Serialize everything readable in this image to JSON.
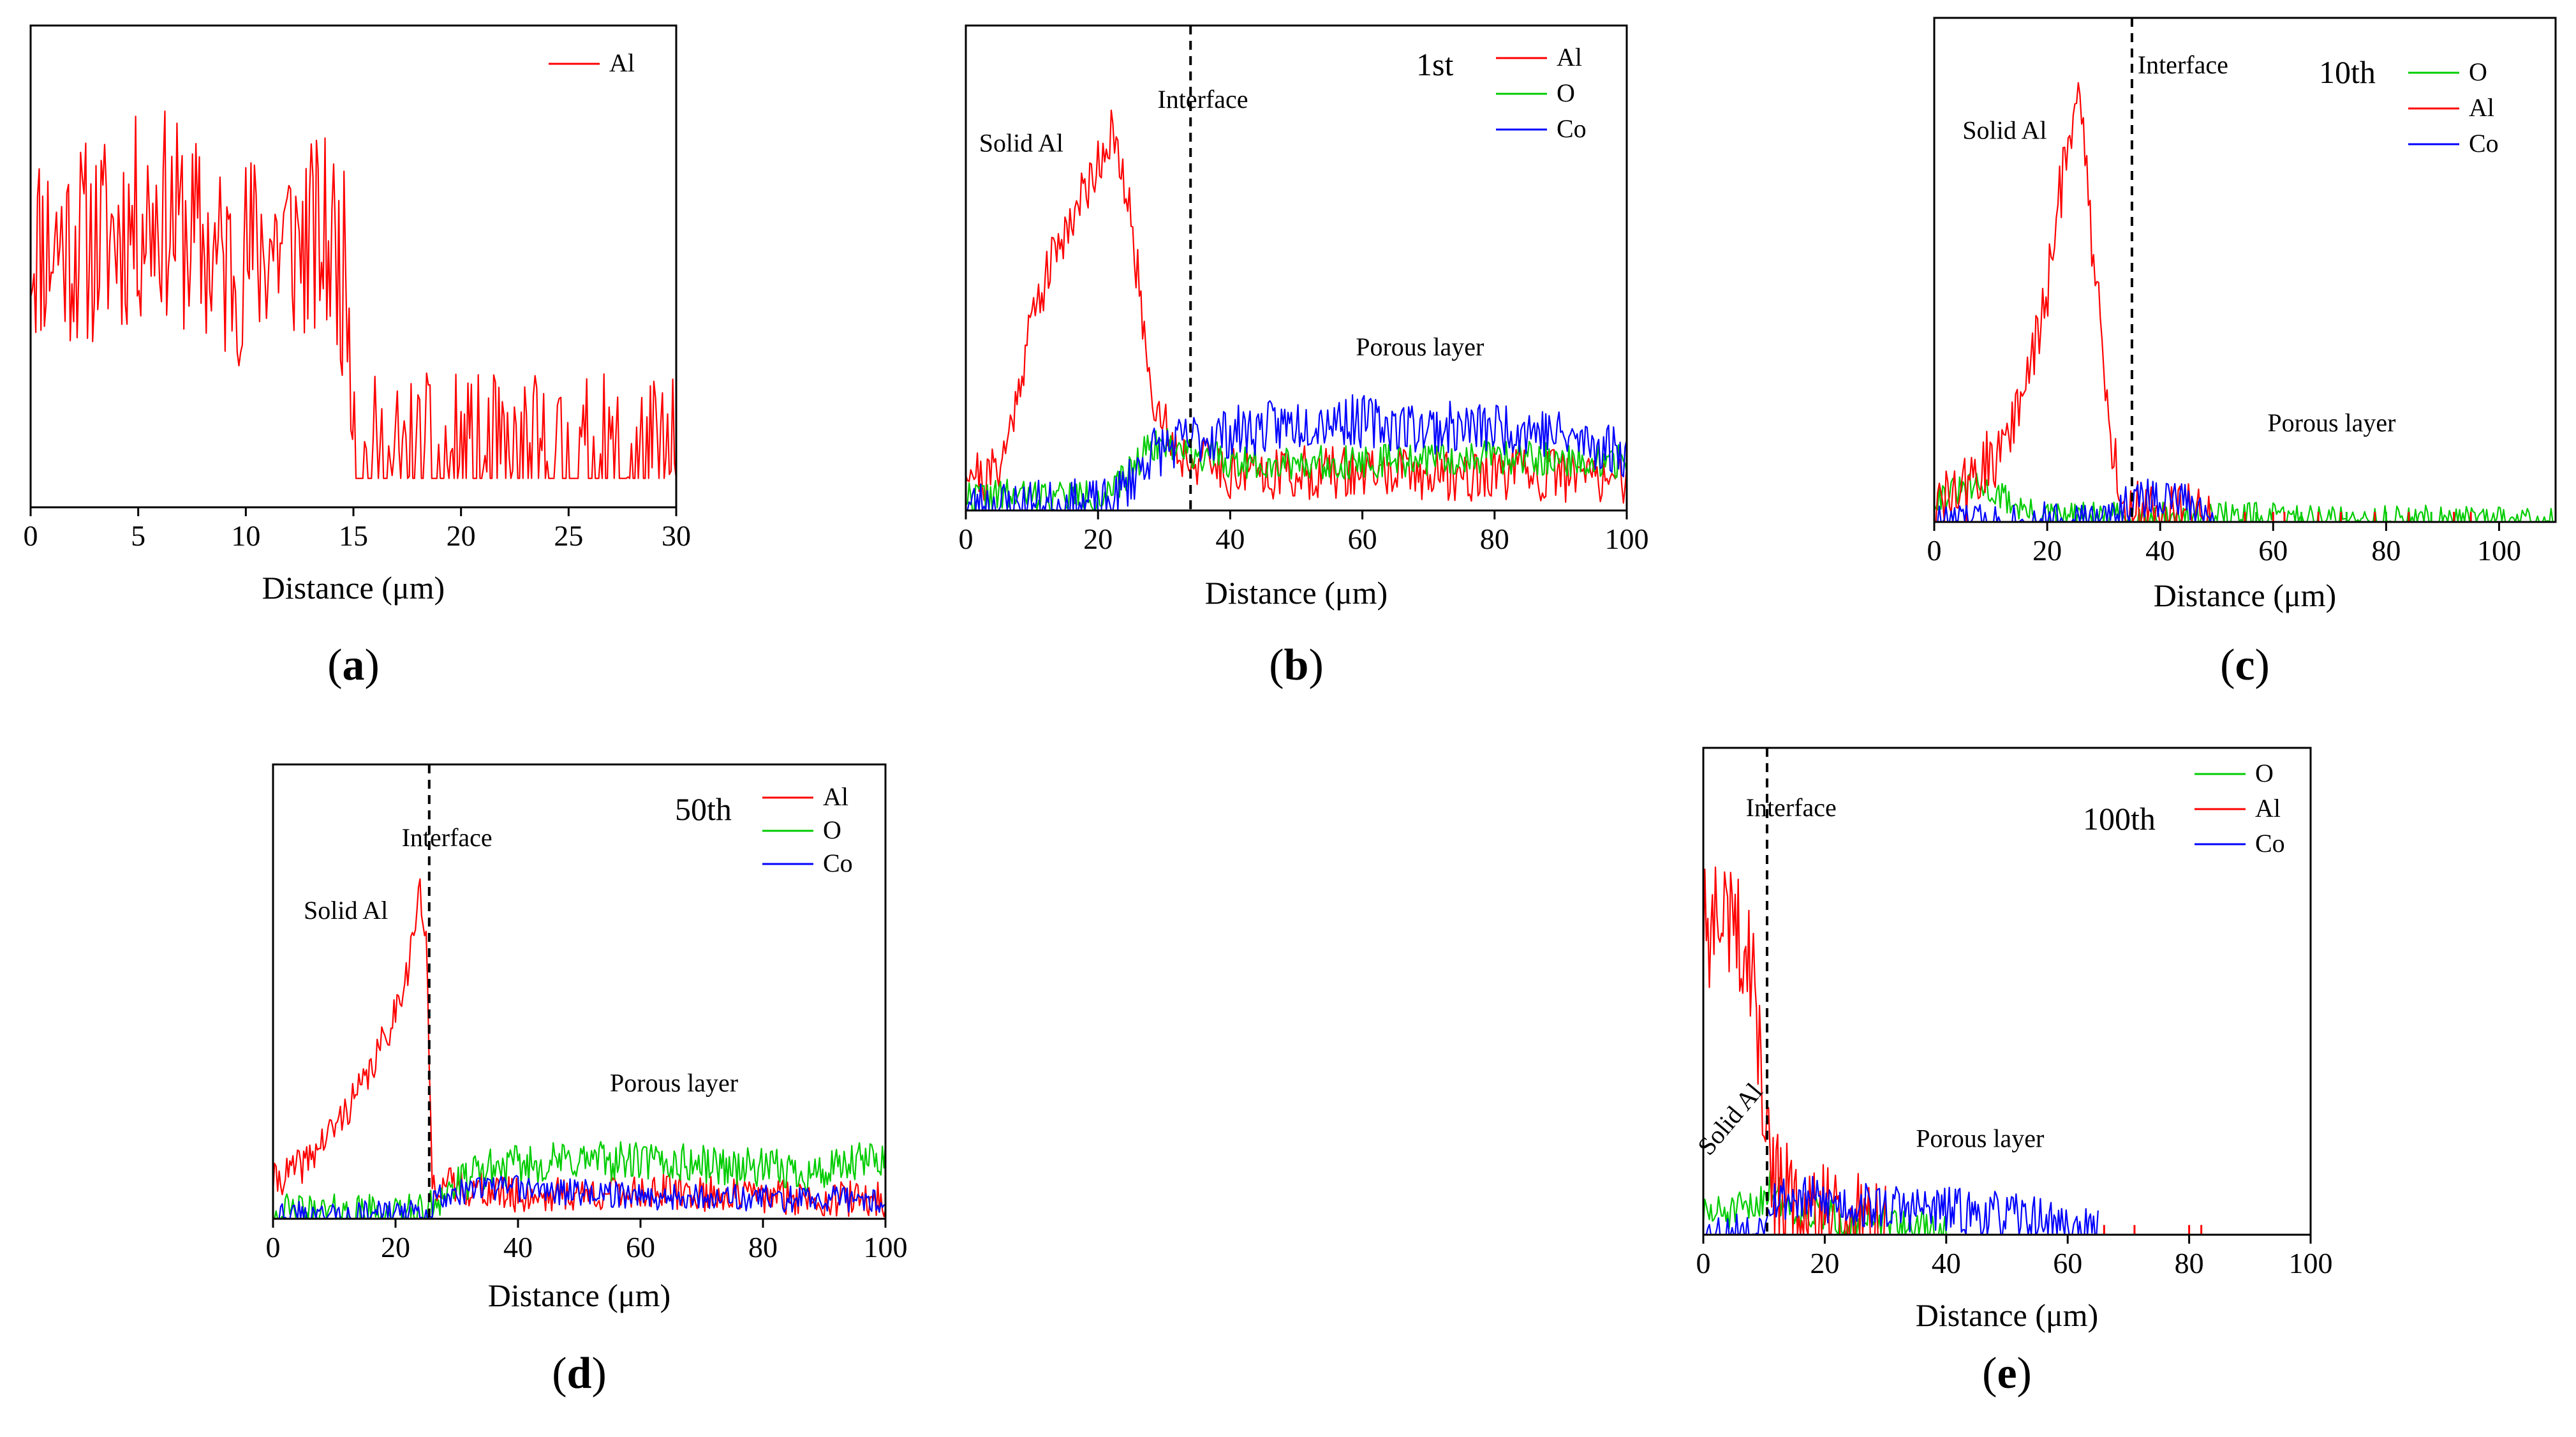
{
  "chart_data": [
    {
      "id": "a",
      "panel_label": "a",
      "type": "line",
      "title": "",
      "xlabel": "Distance (μm)",
      "ylabel": "",
      "xlim": [
        0,
        30
      ],
      "ylim": [
        0,
        1
      ],
      "xticks": [
        0,
        5,
        10,
        15,
        20,
        25,
        30
      ],
      "legend": [
        "Al"
      ],
      "colors": {
        "Al": "#ff0000"
      },
      "series": [
        {
          "name": "Al",
          "seed": 11,
          "step": 0.08,
          "noise": 0.22,
          "clip": true,
          "profile": [
            [
              0,
              0.55
            ],
            [
              3,
              0.55
            ],
            [
              6,
              0.62
            ],
            [
              9,
              0.5
            ],
            [
              10,
              0.52
            ],
            [
              11,
              0.55
            ],
            [
              14,
              0.55
            ],
            [
              14.8,
              0.45
            ],
            [
              15.2,
              0.06
            ],
            [
              30,
              0.06
            ]
          ]
        }
      ],
      "annotations": [],
      "interface": null
    },
    {
      "id": "b",
      "panel_label": "b",
      "type": "line",
      "title": "",
      "run_label": "1st",
      "xlabel": "Distance (μm)",
      "ylabel": "",
      "xlim": [
        0,
        100
      ],
      "ylim": [
        0,
        1
      ],
      "xticks": [
        0,
        20,
        40,
        60,
        80,
        100
      ],
      "legend": [
        "Al",
        "O",
        "Co"
      ],
      "colors": {
        "Al": "#ff0000",
        "O": "#00cc00",
        "Co": "#0000ff"
      },
      "series": [
        {
          "name": "Al",
          "seed": 21,
          "step": 0.25,
          "noise": 0.055,
          "profile": [
            [
              0,
              0.1
            ],
            [
              3,
              0.06
            ],
            [
              6,
              0.12
            ],
            [
              10,
              0.4
            ],
            [
              14,
              0.55
            ],
            [
              18,
              0.66
            ],
            [
              22,
              0.78
            ],
            [
              25,
              0.6
            ],
            [
              28,
              0.25
            ],
            [
              32,
              0.12
            ],
            [
              40,
              0.08
            ],
            [
              100,
              0.07
            ]
          ]
        },
        {
          "name": "O",
          "seed": 22,
          "step": 0.25,
          "noise": 0.035,
          "profile": [
            [
              0,
              0.03
            ],
            [
              22,
              0.03
            ],
            [
              28,
              0.14
            ],
            [
              32,
              0.13
            ],
            [
              40,
              0.1
            ],
            [
              60,
              0.1
            ],
            [
              80,
              0.11
            ],
            [
              100,
              0.1
            ]
          ]
        },
        {
          "name": "Co",
          "seed": 23,
          "step": 0.25,
          "noise": 0.055,
          "profile": [
            [
              0,
              0.01
            ],
            [
              22,
              0.01
            ],
            [
              28,
              0.12
            ],
            [
              35,
              0.15
            ],
            [
              45,
              0.17
            ],
            [
              55,
              0.19
            ],
            [
              70,
              0.17
            ],
            [
              85,
              0.17
            ],
            [
              100,
              0.12
            ]
          ]
        }
      ],
      "annotations": [
        {
          "text": "Solid Al",
          "x": 2,
          "y": 0.74
        },
        {
          "text": "Interface",
          "x": 29,
          "y": 0.83
        },
        {
          "text": "Porous layer",
          "x": 59,
          "y": 0.32
        }
      ],
      "interface": 34
    },
    {
      "id": "c",
      "panel_label": "c",
      "type": "line",
      "title": "",
      "run_label": "10th",
      "xlabel": "Distance (μm)",
      "ylabel": "",
      "xlim": [
        0,
        110
      ],
      "ylim": [
        0,
        1
      ],
      "xticks": [
        0,
        20,
        40,
        60,
        80,
        100
      ],
      "legend": [
        "O",
        "Al",
        "Co"
      ],
      "colors": {
        "O": "#00cc00",
        "Al": "#ff0000",
        "Co": "#0000ff"
      },
      "series": [
        {
          "name": "O",
          "seed": 31,
          "step": 0.3,
          "noise": 0.03,
          "floor": 0.0,
          "profile": [
            [
              0,
              0.05
            ],
            [
              8,
              0.07
            ],
            [
              12,
              0.05
            ],
            [
              18,
              0.01
            ],
            [
              50,
              0.01
            ],
            [
              110,
              0.0
            ]
          ]
        },
        {
          "name": "Al",
          "seed": 32,
          "step": 0.3,
          "noise": 0.07,
          "floor": 0.0,
          "limit": 50,
          "profile": [
            [
              0,
              0.02
            ],
            [
              5,
              0.06
            ],
            [
              10,
              0.12
            ],
            [
              15,
              0.22
            ],
            [
              20,
              0.45
            ],
            [
              24,
              0.8
            ],
            [
              26,
              0.85
            ],
            [
              28,
              0.55
            ],
            [
              31,
              0.18
            ],
            [
              34,
              0.02
            ],
            [
              50,
              0.0
            ]
          ]
        },
        {
          "name": "Co",
          "seed": 33,
          "step": 0.3,
          "noise": 0.04,
          "floor": 0.0,
          "limit": 50,
          "profile": [
            [
              0,
              0.0
            ],
            [
              30,
              0.0
            ],
            [
              33,
              0.03
            ],
            [
              38,
              0.05
            ],
            [
              45,
              0.04
            ],
            [
              49,
              0.0
            ]
          ]
        }
      ],
      "sparse": [
        {
          "name": "Al",
          "x": [
            55,
            60,
            62,
            68,
            72,
            78,
            84,
            92,
            95
          ],
          "y": 0.02
        },
        {
          "name": "O",
          "x": [
            57,
            65,
            73,
            80,
            88
          ],
          "y": 0.02
        }
      ],
      "annotations": [
        {
          "text": "Solid Al",
          "x": 5,
          "y": 0.76
        },
        {
          "text": "Interface",
          "x": 36,
          "y": 0.89
        },
        {
          "text": "Porous layer",
          "x": 59,
          "y": 0.18
        }
      ],
      "interface": 35
    },
    {
      "id": "d",
      "panel_label": "d",
      "type": "line",
      "title": "",
      "run_label": "50th",
      "xlabel": "Distance (μm)",
      "ylabel": "",
      "xlim": [
        0,
        100
      ],
      "ylim": [
        0,
        1
      ],
      "xticks": [
        0,
        20,
        40,
        60,
        80,
        100
      ],
      "legend": [
        "Al",
        "O",
        "Co"
      ],
      "colors": {
        "Al": "#ff0000",
        "O": "#00cc00",
        "Co": "#0000ff"
      },
      "series": [
        {
          "name": "Al",
          "seed": 41,
          "step": 0.25,
          "noise": 0.04,
          "limit": 100,
          "profile": [
            [
              0,
              0.08
            ],
            [
              5,
              0.12
            ],
            [
              10,
              0.2
            ],
            [
              15,
              0.3
            ],
            [
              19,
              0.42
            ],
            [
              22,
              0.55
            ],
            [
              24,
              0.72
            ],
            [
              25,
              0.6
            ],
            [
              26,
              0.08
            ],
            [
              40,
              0.05
            ],
            [
              60,
              0.06
            ],
            [
              80,
              0.05
            ],
            [
              100,
              0.04
            ]
          ]
        },
        {
          "name": "O",
          "seed": 42,
          "step": 0.25,
          "noise": 0.045,
          "profile": [
            [
              0,
              0.01
            ],
            [
              25,
              0.01
            ],
            [
              27,
              0.05
            ],
            [
              35,
              0.11
            ],
            [
              50,
              0.13
            ],
            [
              70,
              0.12
            ],
            [
              90,
              0.1
            ],
            [
              100,
              0.14
            ]
          ]
        },
        {
          "name": "Co",
          "seed": 43,
          "step": 0.25,
          "noise": 0.03,
          "profile": [
            [
              0,
              0.01
            ],
            [
              25,
              0.01
            ],
            [
              27,
              0.05
            ],
            [
              35,
              0.07
            ],
            [
              60,
              0.05
            ],
            [
              100,
              0.04
            ]
          ]
        }
      ],
      "annotations": [
        {
          "text": "Solid Al",
          "x": 5,
          "y": 0.66
        },
        {
          "text": "Interface",
          "x": 21,
          "y": 0.82
        },
        {
          "text": "Porous layer",
          "x": 55,
          "y": 0.28
        }
      ],
      "interface": 25.5
    },
    {
      "id": "e",
      "panel_label": "e",
      "type": "line",
      "title": "",
      "run_label": "100th",
      "xlabel": "Distance (μm)",
      "ylabel": "",
      "xlim": [
        0,
        100
      ],
      "ylim": [
        0,
        1
      ],
      "xticks": [
        0,
        20,
        40,
        60,
        80,
        100
      ],
      "legend": [
        "O",
        "Al",
        "Co"
      ],
      "colors": {
        "O": "#00cc00",
        "Al": "#ff0000",
        "Co": "#0000ff"
      },
      "series": [
        {
          "name": "O",
          "seed": 51,
          "step": 0.25,
          "noise": 0.04,
          "floor": 0.0,
          "limit": 40,
          "profile": [
            [
              0,
              0.04
            ],
            [
              8,
              0.05
            ],
            [
              11,
              0.1
            ],
            [
              15,
              0.05
            ],
            [
              25,
              0.03
            ],
            [
              40,
              0.0
            ]
          ]
        },
        {
          "name": "Al",
          "seed": 52,
          "step": 0.25,
          "noise": 0.13,
          "floor": 0.0,
          "limit": 30,
          "profile": [
            [
              0,
              0.62
            ],
            [
              4,
              0.65
            ],
            [
              8,
              0.55
            ],
            [
              10,
              0.25
            ],
            [
              12,
              0.1
            ],
            [
              15,
              0.03
            ],
            [
              30,
              0.0
            ]
          ]
        },
        {
          "name": "Co",
          "seed": 53,
          "step": 0.25,
          "noise": 0.05,
          "floor": 0.0,
          "limit": 65,
          "profile": [
            [
              0,
              0.0
            ],
            [
              9,
              0.0
            ],
            [
              11,
              0.08
            ],
            [
              18,
              0.07
            ],
            [
              25,
              0.06
            ],
            [
              40,
              0.05
            ],
            [
              55,
              0.03
            ],
            [
              64,
              0.0
            ]
          ]
        }
      ],
      "sparse": [
        {
          "name": "Al",
          "x": [
            66,
            71,
            80,
            82
          ],
          "y": 0.02
        }
      ],
      "annotations": [
        {
          "text": "Interface",
          "x": 7,
          "y": 0.86
        },
        {
          "text": "Porous layer",
          "x": 35,
          "y": 0.18
        },
        {
          "text": "Solid Al",
          "x": 1,
          "y": 0.16,
          "rotate": -50
        }
      ],
      "interface": 10.5
    }
  ]
}
